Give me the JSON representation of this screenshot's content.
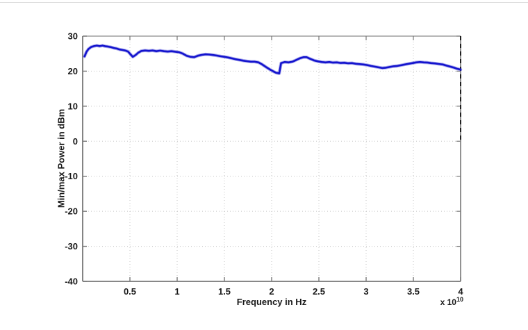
{
  "figure": {
    "background": "#ffffff",
    "top_hairline_color": "#dcdcdc"
  },
  "chart_data": {
    "type": "line",
    "title": "",
    "xlabel": "Frequency in Hz",
    "ylabel": "Min/max Power in dBm",
    "x_unit_label": {
      "prefix": "x 10",
      "exponent": "10"
    },
    "xlim_1e10": [
      0,
      4
    ],
    "ylim_dbm": [
      -40,
      30
    ],
    "grid": "dotted",
    "grid_color": "#c4c4c4",
    "legend": "none",
    "axes_box": true,
    "spine_color": "#777777",
    "tick_label_color": "#1a1a1a",
    "xticks": {
      "values_1e10": [
        0.5,
        1,
        1.5,
        2,
        2.5,
        3,
        3.5,
        4
      ],
      "labels": [
        "0.5",
        "1",
        "1.5",
        "2",
        "2.5",
        "3",
        "3.5",
        "4"
      ]
    },
    "yticks": {
      "values_dbm": [
        30,
        20,
        10,
        0,
        -10,
        -20,
        -30,
        -40
      ],
      "labels": [
        "30",
        "20",
        "10",
        "0",
        "-10",
        "-20",
        "-30",
        "-40"
      ]
    },
    "marker_line": {
      "x_1e10": 4,
      "y_from_dbm": 0,
      "y_to_dbm": 30,
      "style": "dashed",
      "color": "#1a1a1a"
    },
    "series": [
      {
        "name": "min-max-power-trace",
        "color": "#1313cd",
        "x_unit": "1e10 Hz",
        "y_unit": "dBm",
        "points": [
          [
            0.02,
            24.2
          ],
          [
            0.04,
            25.5
          ],
          [
            0.06,
            26.3
          ],
          [
            0.09,
            26.9
          ],
          [
            0.12,
            27.15
          ],
          [
            0.15,
            27.3
          ],
          [
            0.18,
            27.15
          ],
          [
            0.21,
            27.3
          ],
          [
            0.24,
            27.1
          ],
          [
            0.27,
            27.0
          ],
          [
            0.3,
            26.85
          ],
          [
            0.33,
            26.6
          ],
          [
            0.36,
            26.45
          ],
          [
            0.39,
            26.2
          ],
          [
            0.42,
            26.05
          ],
          [
            0.45,
            25.9
          ],
          [
            0.48,
            25.6
          ],
          [
            0.5,
            25.0
          ],
          [
            0.53,
            24.1
          ],
          [
            0.56,
            24.6
          ],
          [
            0.59,
            25.3
          ],
          [
            0.62,
            25.75
          ],
          [
            0.66,
            25.9
          ],
          [
            0.7,
            25.8
          ],
          [
            0.74,
            25.9
          ],
          [
            0.78,
            25.7
          ],
          [
            0.82,
            25.85
          ],
          [
            0.86,
            25.7
          ],
          [
            0.9,
            25.6
          ],
          [
            0.94,
            25.7
          ],
          [
            0.98,
            25.55
          ],
          [
            1.02,
            25.4
          ],
          [
            1.06,
            25.0
          ],
          [
            1.1,
            24.4
          ],
          [
            1.14,
            24.1
          ],
          [
            1.18,
            24.0
          ],
          [
            1.22,
            24.4
          ],
          [
            1.26,
            24.65
          ],
          [
            1.3,
            24.8
          ],
          [
            1.34,
            24.75
          ],
          [
            1.38,
            24.6
          ],
          [
            1.42,
            24.45
          ],
          [
            1.46,
            24.25
          ],
          [
            1.5,
            24.1
          ],
          [
            1.54,
            23.9
          ],
          [
            1.58,
            23.65
          ],
          [
            1.62,
            23.4
          ],
          [
            1.66,
            23.2
          ],
          [
            1.7,
            23.0
          ],
          [
            1.74,
            22.85
          ],
          [
            1.78,
            22.7
          ],
          [
            1.82,
            22.7
          ],
          [
            1.86,
            22.5
          ],
          [
            1.9,
            21.9
          ],
          [
            1.94,
            21.2
          ],
          [
            1.98,
            20.5
          ],
          [
            2.02,
            19.9
          ],
          [
            2.05,
            19.5
          ],
          [
            2.08,
            19.35
          ],
          [
            2.1,
            22.3
          ],
          [
            2.14,
            22.6
          ],
          [
            2.18,
            22.5
          ],
          [
            2.22,
            22.7
          ],
          [
            2.26,
            23.2
          ],
          [
            2.3,
            23.7
          ],
          [
            2.34,
            24.0
          ],
          [
            2.37,
            24.0
          ],
          [
            2.41,
            23.5
          ],
          [
            2.45,
            23.05
          ],
          [
            2.49,
            22.8
          ],
          [
            2.53,
            22.6
          ],
          [
            2.57,
            22.5
          ],
          [
            2.61,
            22.6
          ],
          [
            2.65,
            22.45
          ],
          [
            2.69,
            22.5
          ],
          [
            2.73,
            22.35
          ],
          [
            2.77,
            22.4
          ],
          [
            2.81,
            22.25
          ],
          [
            2.85,
            22.3
          ],
          [
            2.89,
            22.1
          ],
          [
            2.93,
            22.0
          ],
          [
            2.97,
            21.9
          ],
          [
            3.01,
            21.75
          ],
          [
            3.05,
            21.5
          ],
          [
            3.09,
            21.3
          ],
          [
            3.13,
            21.1
          ],
          [
            3.17,
            20.9
          ],
          [
            3.21,
            21.0
          ],
          [
            3.25,
            21.2
          ],
          [
            3.29,
            21.4
          ],
          [
            3.33,
            21.5
          ],
          [
            3.37,
            21.7
          ],
          [
            3.41,
            21.9
          ],
          [
            3.45,
            22.1
          ],
          [
            3.49,
            22.3
          ],
          [
            3.53,
            22.5
          ],
          [
            3.57,
            22.6
          ],
          [
            3.61,
            22.5
          ],
          [
            3.65,
            22.45
          ],
          [
            3.69,
            22.3
          ],
          [
            3.73,
            22.2
          ],
          [
            3.77,
            22.05
          ],
          [
            3.81,
            21.9
          ],
          [
            3.85,
            21.6
          ],
          [
            3.89,
            21.3
          ],
          [
            3.93,
            21.0
          ],
          [
            3.96,
            20.7
          ],
          [
            4.0,
            20.45
          ]
        ]
      }
    ]
  }
}
